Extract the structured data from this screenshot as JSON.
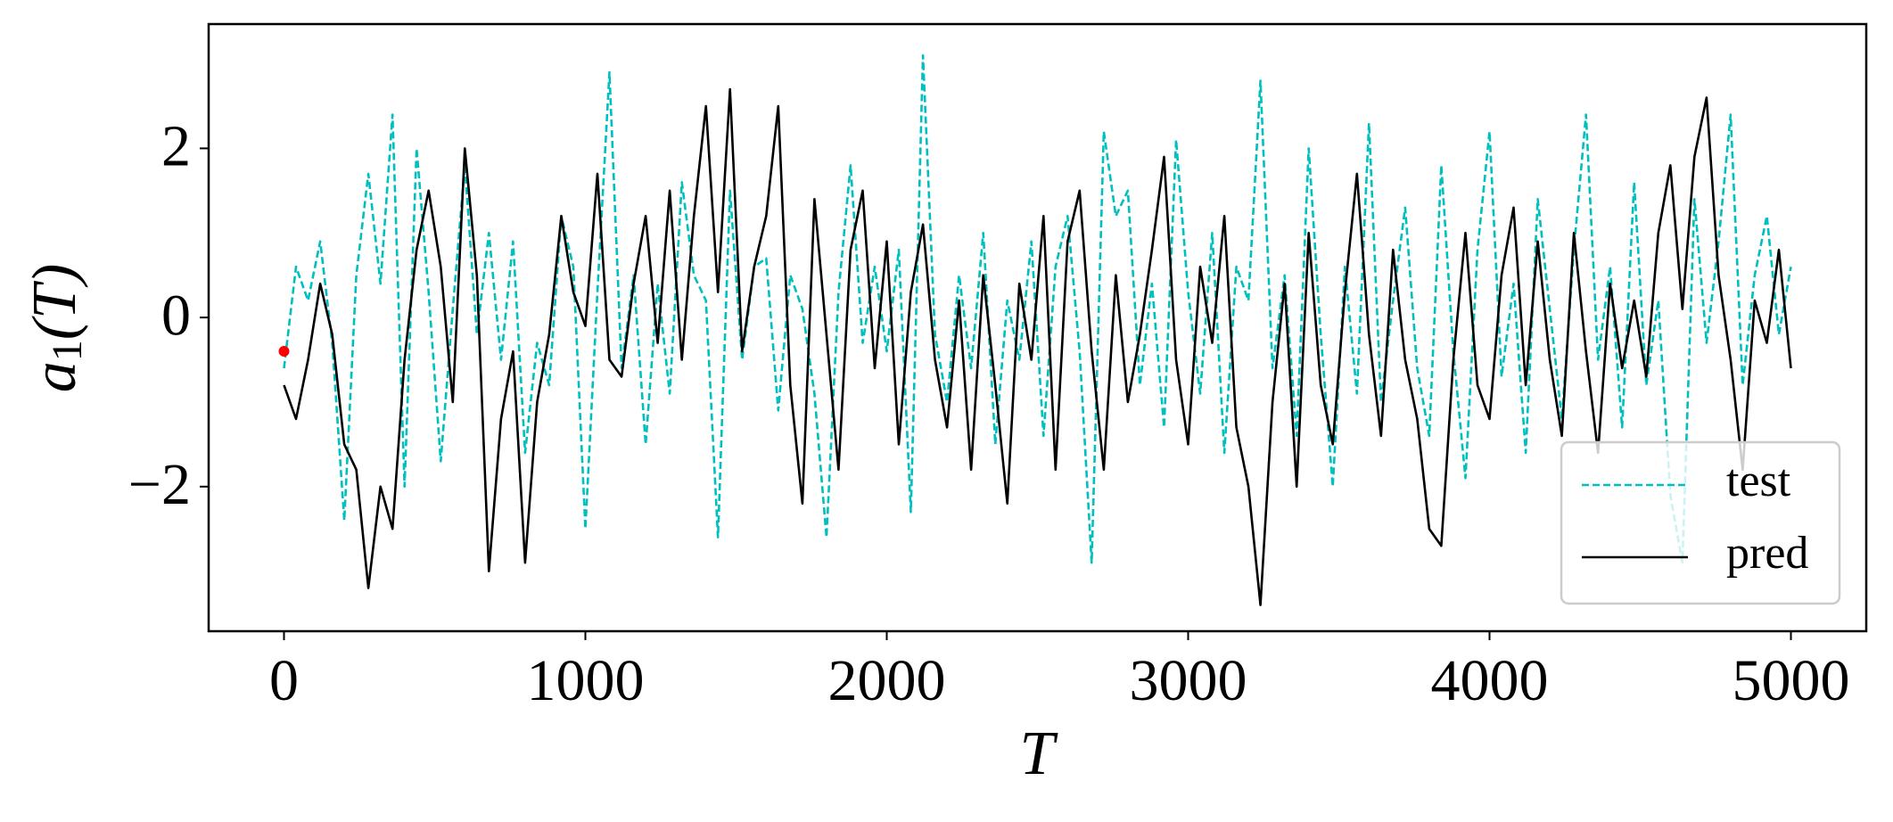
{
  "chart_data": {
    "type": "line",
    "xlabel": "T",
    "ylabel": {
      "base": "a",
      "sub": "1",
      "arg": "(T)"
    },
    "xlim": [
      -250,
      5250
    ],
    "ylim": [
      -3.71,
      3.47
    ],
    "xticks": [
      0,
      1000,
      2000,
      3000,
      4000,
      5000
    ],
    "yticks": [
      {
        "value": -2,
        "label": "−2"
      },
      0,
      2
    ],
    "legend": "lower right",
    "x": [
      0,
      40,
      80,
      120,
      160,
      200,
      240,
      280,
      320,
      360,
      400,
      440,
      480,
      520,
      560,
      600,
      640,
      680,
      720,
      760,
      800,
      840,
      880,
      920,
      960,
      1000,
      1040,
      1080,
      1120,
      1160,
      1200,
      1240,
      1280,
      1320,
      1360,
      1400,
      1440,
      1480,
      1520,
      1560,
      1600,
      1640,
      1680,
      1720,
      1760,
      1800,
      1840,
      1880,
      1920,
      1960,
      2000,
      2040,
      2080,
      2120,
      2160,
      2200,
      2240,
      2280,
      2320,
      2360,
      2400,
      2440,
      2480,
      2520,
      2560,
      2600,
      2640,
      2680,
      2720,
      2760,
      2800,
      2840,
      2880,
      2920,
      2960,
      3000,
      3040,
      3080,
      3120,
      3160,
      3200,
      3240,
      3280,
      3320,
      3360,
      3400,
      3440,
      3480,
      3520,
      3560,
      3600,
      3640,
      3680,
      3720,
      3760,
      3800,
      3840,
      3880,
      3920,
      3960,
      4000,
      4040,
      4080,
      4120,
      4160,
      4200,
      4240,
      4280,
      4320,
      4360,
      4400,
      4440,
      4480,
      4520,
      4560,
      4600,
      4640,
      4680,
      4720,
      4760,
      4800,
      4840,
      4880,
      4920,
      4960,
      5000
    ],
    "series": [
      {
        "name": "test",
        "color": "#00bfbf",
        "dashed": true,
        "values": [
          -0.6,
          0.6,
          0.2,
          0.9,
          -0.3,
          -2.4,
          0.5,
          1.7,
          0.4,
          2.4,
          -2.0,
          2.0,
          0.3,
          -1.7,
          0.1,
          1.8,
          -0.2,
          1.0,
          -0.5,
          0.9,
          -1.6,
          -0.3,
          -0.8,
          1.2,
          0.6,
          -2.5,
          0.3,
          2.9,
          -0.6,
          0.5,
          -1.5,
          0.4,
          -0.9,
          1.6,
          0.5,
          0.2,
          -2.6,
          1.5,
          -0.5,
          0.6,
          0.7,
          -1.1,
          0.5,
          0.1,
          -0.9,
          -2.6,
          0.3,
          1.8,
          -0.3,
          0.6,
          -0.4,
          0.8,
          -2.3,
          3.1,
          -0.2,
          -1.0,
          0.5,
          -0.6,
          1.0,
          -1.5,
          0.2,
          -0.5,
          0.9,
          -1.4,
          0.6,
          1.2,
          -0.4,
          -2.9,
          2.2,
          1.2,
          1.5,
          -0.8,
          0.4,
          -1.3,
          2.1,
          0.3,
          -0.9,
          1.0,
          -1.6,
          0.6,
          0.2,
          2.8,
          -0.6,
          0.5,
          -1.4,
          2.0,
          -0.2,
          -2.0,
          0.6,
          -0.9,
          2.3,
          -1.0,
          0.2,
          1.3,
          -0.6,
          -1.4,
          1.8,
          -0.4,
          -1.9,
          0.8,
          2.2,
          -0.7,
          0.4,
          -1.6,
          1.4,
          0.1,
          -1.2,
          0.8,
          2.4,
          -0.5,
          0.6,
          -1.3,
          1.6,
          -0.8,
          0.2,
          -2.1,
          -2.9,
          1.4,
          -0.3,
          0.9,
          2.4,
          -0.8,
          0.5,
          1.2,
          -0.2,
          0.6
        ]
      },
      {
        "name": "pred",
        "color": "#000000",
        "dashed": false,
        "values": [
          -0.8,
          -1.2,
          -0.5,
          0.4,
          -0.2,
          -1.5,
          -1.8,
          -3.2,
          -2.0,
          -2.5,
          -0.5,
          0.8,
          1.5,
          0.6,
          -1.0,
          2.0,
          0.5,
          -3.0,
          -1.2,
          -0.4,
          -2.9,
          -1.0,
          -0.2,
          1.2,
          0.3,
          -0.1,
          1.7,
          -0.5,
          -0.7,
          0.4,
          1.2,
          -0.3,
          1.5,
          -0.5,
          1.2,
          2.5,
          0.3,
          2.7,
          -0.4,
          0.6,
          1.2,
          2.5,
          -0.8,
          -2.2,
          1.4,
          -0.2,
          -1.8,
          0.8,
          1.5,
          -0.6,
          0.9,
          -1.5,
          0.3,
          1.1,
          -0.5,
          -1.3,
          0.2,
          -1.8,
          0.5,
          -0.8,
          -2.2,
          0.4,
          -0.5,
          1.2,
          -1.8,
          0.9,
          1.5,
          -0.4,
          -1.8,
          0.5,
          -1.0,
          -0.2,
          0.8,
          1.9,
          -0.5,
          -1.5,
          0.6,
          -0.3,
          1.2,
          -1.3,
          -2.0,
          -3.4,
          -1.0,
          0.4,
          -2.0,
          1.0,
          -0.8,
          -1.5,
          0.3,
          1.7,
          -0.2,
          -1.4,
          0.8,
          -0.5,
          -1.2,
          -2.5,
          -2.7,
          -0.5,
          1.0,
          -0.8,
          -1.2,
          0.5,
          1.3,
          -0.8,
          0.9,
          -0.5,
          -1.4,
          1.0,
          -0.4,
          -1.6,
          0.4,
          -0.6,
          0.2,
          -0.7,
          1.0,
          1.8,
          0.1,
          1.9,
          2.6,
          0.5,
          -0.5,
          -1.8,
          0.2,
          -0.3,
          0.8,
          -0.6
        ]
      }
    ],
    "points": [
      {
        "x": 0,
        "y": -0.4,
        "color": "#ff0000"
      }
    ]
  }
}
